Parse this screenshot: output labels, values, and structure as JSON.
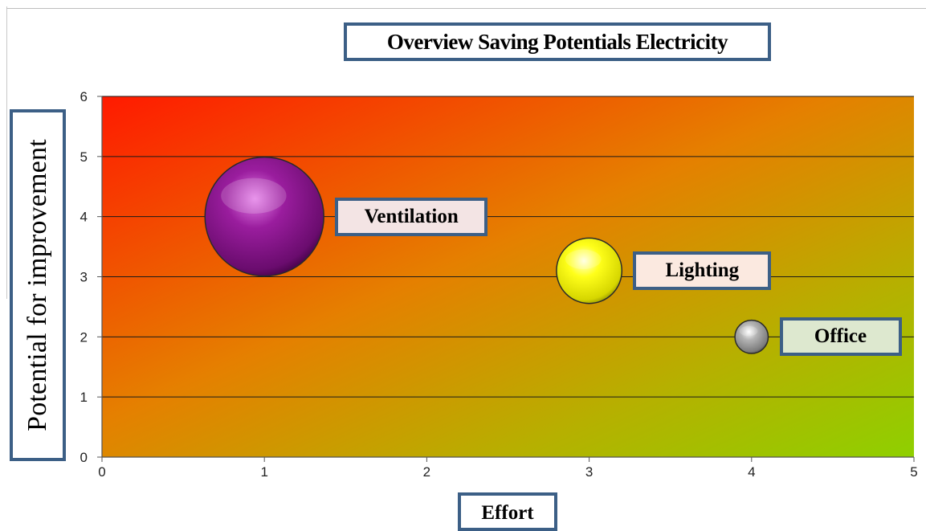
{
  "chart_data": {
    "type": "bubble",
    "title": "Overview Saving Potentials Electricity",
    "xlabel": "Effort",
    "ylabel": "Potential for improvement",
    "xlim": [
      0,
      5
    ],
    "ylim": [
      0,
      6
    ],
    "x_ticks": [
      "0",
      "1",
      "2",
      "3",
      "4",
      "5"
    ],
    "y_ticks": [
      "0",
      "1",
      "2",
      "3",
      "4",
      "5",
      "6"
    ],
    "grid": "horizontal",
    "legend": "none",
    "background": "gradient red (top-left) to green (bottom-right)",
    "points": [
      {
        "label": "Ventilation",
        "x": 1,
        "y": 4,
        "size": 1.0,
        "color": "#8a1a8c",
        "label_bg": "#f3e4e4"
      },
      {
        "label": "Lighting",
        "x": 3,
        "y": 3.1,
        "size": 0.55,
        "color": "#f2f21a",
        "label_bg": "#fbe9e0"
      },
      {
        "label": "Office",
        "x": 4,
        "y": 2,
        "size": 0.28,
        "color": "#9a9a9a",
        "label_bg": "#dde8cf"
      }
    ]
  }
}
